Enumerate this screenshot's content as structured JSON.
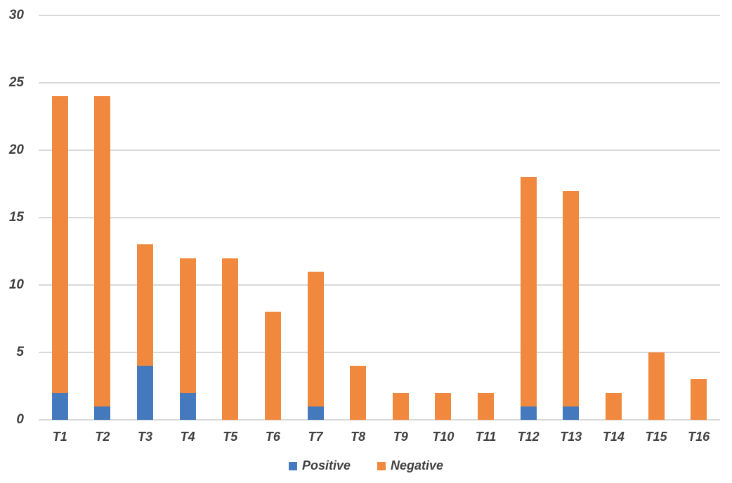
{
  "chart_data": {
    "type": "bar",
    "stacked": true,
    "title": "",
    "xlabel": "",
    "ylabel": "",
    "categories": [
      "T1",
      "T2",
      "T3",
      "T4",
      "T5",
      "T6",
      "T7",
      "T8",
      "T9",
      "T10",
      "T11",
      "T12",
      "T13",
      "T14",
      "T15",
      "T16"
    ],
    "series": [
      {
        "name": "Positive",
        "color": "#4579bd",
        "values": [
          2,
          1,
          4,
          2,
          0,
          0,
          1,
          0,
          0,
          0,
          0,
          1,
          1,
          0,
          0,
          0
        ]
      },
      {
        "name": "Negative",
        "color": "#f0883e",
        "values": [
          22,
          23,
          9,
          10,
          12,
          8,
          10,
          4,
          2,
          2,
          2,
          17,
          16,
          2,
          5,
          3
        ]
      }
    ],
    "totals": [
      24,
      24,
      13,
      12,
      12,
      8,
      11,
      4,
      2,
      2,
      2,
      18,
      17,
      2,
      5,
      3
    ],
    "ylim": [
      0,
      30
    ],
    "yticks": [
      0,
      5,
      10,
      15,
      20,
      25,
      30
    ],
    "grid": true,
    "legend_position": "bottom"
  },
  "colors": {
    "positive": "#4579bd",
    "negative": "#f0883e",
    "gridline": "#d9d9d9",
    "text": "#404040",
    "background": "#ffffff"
  }
}
